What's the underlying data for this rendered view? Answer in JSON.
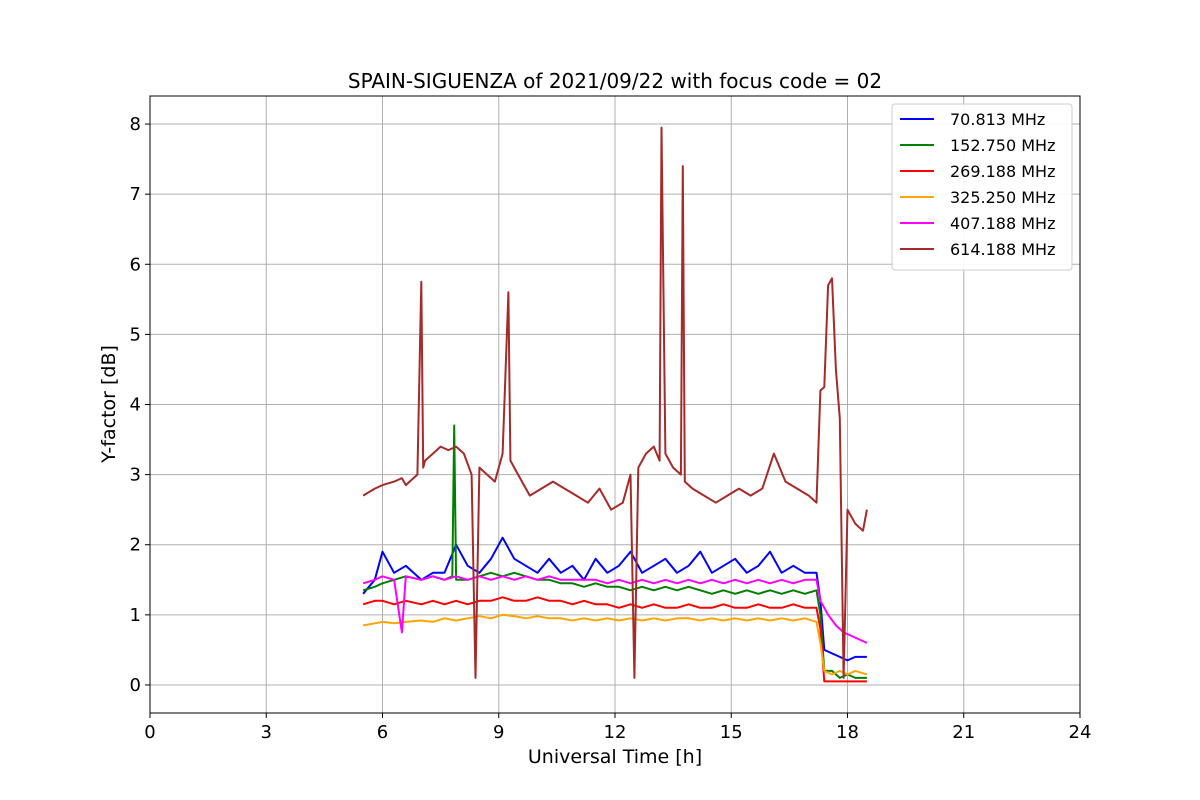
{
  "chart_data": {
    "type": "line",
    "title": "SPAIN-SIGUENZA of 2021/09/22 with focus code = 02",
    "xlabel": "Universal Time [h]",
    "ylabel": "Y-factor [dB]",
    "xlim": [
      0,
      24
    ],
    "ylim": [
      -0.4,
      8.4
    ],
    "xticks": [
      0,
      3,
      6,
      9,
      12,
      15,
      18,
      21,
      24
    ],
    "yticks": [
      0,
      1,
      2,
      3,
      4,
      5,
      6,
      7,
      8
    ],
    "grid": true,
    "legend_position": "top-right",
    "series": [
      {
        "name": "70.813 MHz",
        "color": "#0000ff",
        "x": [
          5.5,
          5.8,
          6.0,
          6.3,
          6.6,
          7.0,
          7.3,
          7.6,
          7.9,
          8.2,
          8.5,
          8.8,
          9.1,
          9.4,
          9.7,
          10.0,
          10.3,
          10.6,
          10.9,
          11.2,
          11.5,
          11.8,
          12.1,
          12.4,
          12.7,
          13.0,
          13.3,
          13.6,
          13.9,
          14.2,
          14.5,
          14.8,
          15.1,
          15.4,
          15.7,
          16.0,
          16.3,
          16.6,
          16.9,
          17.2,
          17.3,
          17.4,
          17.6,
          17.8,
          18.0,
          18.2,
          18.5
        ],
        "y": [
          1.3,
          1.5,
          1.9,
          1.6,
          1.7,
          1.5,
          1.6,
          1.6,
          2.0,
          1.7,
          1.6,
          1.8,
          2.1,
          1.8,
          1.7,
          1.6,
          1.8,
          1.6,
          1.7,
          1.5,
          1.8,
          1.6,
          1.7,
          1.9,
          1.6,
          1.7,
          1.8,
          1.6,
          1.7,
          1.9,
          1.6,
          1.7,
          1.8,
          1.6,
          1.7,
          1.9,
          1.6,
          1.7,
          1.6,
          1.6,
          1.2,
          0.5,
          0.45,
          0.4,
          0.35,
          0.4,
          0.4
        ]
      },
      {
        "name": "152.750 MHz",
        "color": "#008000",
        "x": [
          5.5,
          5.8,
          6.0,
          6.3,
          6.6,
          7.0,
          7.3,
          7.6,
          7.8,
          7.85,
          7.9,
          8.2,
          8.5,
          8.8,
          9.1,
          9.4,
          9.7,
          10.0,
          10.3,
          10.6,
          10.9,
          11.2,
          11.5,
          11.8,
          12.1,
          12.4,
          12.7,
          13.0,
          13.3,
          13.6,
          13.9,
          14.2,
          14.5,
          14.8,
          15.1,
          15.4,
          15.7,
          16.0,
          16.3,
          16.6,
          16.9,
          17.2,
          17.3,
          17.4,
          17.6,
          17.8,
          18.0,
          18.2,
          18.5
        ],
        "y": [
          1.35,
          1.4,
          1.45,
          1.5,
          1.55,
          1.5,
          1.55,
          1.5,
          1.55,
          3.7,
          1.5,
          1.5,
          1.55,
          1.6,
          1.55,
          1.6,
          1.55,
          1.5,
          1.5,
          1.45,
          1.45,
          1.4,
          1.45,
          1.4,
          1.4,
          1.35,
          1.4,
          1.35,
          1.4,
          1.35,
          1.4,
          1.35,
          1.3,
          1.35,
          1.3,
          1.35,
          1.3,
          1.35,
          1.3,
          1.35,
          1.3,
          1.35,
          1.0,
          0.2,
          0.2,
          0.1,
          0.15,
          0.1,
          0.1
        ]
      },
      {
        "name": "269.188 MHz",
        "color": "#ff0000",
        "x": [
          5.5,
          5.8,
          6.0,
          6.3,
          6.6,
          7.0,
          7.3,
          7.6,
          7.9,
          8.2,
          8.5,
          8.8,
          9.1,
          9.4,
          9.7,
          10.0,
          10.3,
          10.6,
          10.9,
          11.2,
          11.5,
          11.8,
          12.1,
          12.4,
          12.7,
          13.0,
          13.3,
          13.6,
          13.9,
          14.2,
          14.5,
          14.8,
          15.1,
          15.4,
          15.7,
          16.0,
          16.3,
          16.6,
          16.9,
          17.2,
          17.3,
          17.4,
          17.6,
          17.8,
          18.0,
          18.2,
          18.5
        ],
        "y": [
          1.15,
          1.2,
          1.2,
          1.15,
          1.2,
          1.15,
          1.2,
          1.15,
          1.2,
          1.15,
          1.2,
          1.2,
          1.25,
          1.2,
          1.2,
          1.25,
          1.2,
          1.2,
          1.15,
          1.2,
          1.15,
          1.15,
          1.1,
          1.15,
          1.1,
          1.15,
          1.1,
          1.1,
          1.15,
          1.1,
          1.1,
          1.15,
          1.1,
          1.1,
          1.15,
          1.1,
          1.1,
          1.15,
          1.1,
          1.1,
          0.8,
          0.05,
          0.05,
          0.05,
          0.05,
          0.05,
          0.05
        ]
      },
      {
        "name": "325.250 MHz",
        "color": "#ffa500",
        "x": [
          5.5,
          5.8,
          6.0,
          6.3,
          6.6,
          7.0,
          7.3,
          7.6,
          7.9,
          8.2,
          8.5,
          8.8,
          9.1,
          9.4,
          9.7,
          10.0,
          10.3,
          10.6,
          10.9,
          11.2,
          11.5,
          11.8,
          12.1,
          12.4,
          12.7,
          13.0,
          13.3,
          13.6,
          13.9,
          14.2,
          14.5,
          14.8,
          15.1,
          15.4,
          15.7,
          16.0,
          16.3,
          16.6,
          16.9,
          17.2,
          17.3,
          17.4,
          17.6,
          17.8,
          18.0,
          18.2,
          18.5
        ],
        "y": [
          0.85,
          0.88,
          0.9,
          0.88,
          0.9,
          0.92,
          0.9,
          0.95,
          0.92,
          0.95,
          0.98,
          0.95,
          1.0,
          0.98,
          0.95,
          0.98,
          0.95,
          0.95,
          0.92,
          0.95,
          0.92,
          0.95,
          0.92,
          0.95,
          0.92,
          0.95,
          0.92,
          0.95,
          0.95,
          0.92,
          0.95,
          0.92,
          0.95,
          0.92,
          0.95,
          0.92,
          0.95,
          0.92,
          0.95,
          0.9,
          0.6,
          0.2,
          0.15,
          0.2,
          0.15,
          0.2,
          0.15
        ]
      },
      {
        "name": "407.188 MHz",
        "color": "#ff00ff",
        "x": [
          5.5,
          5.8,
          6.0,
          6.3,
          6.5,
          6.6,
          7.0,
          7.3,
          7.6,
          7.9,
          8.2,
          8.5,
          8.8,
          9.1,
          9.4,
          9.7,
          10.0,
          10.3,
          10.6,
          10.9,
          11.2,
          11.5,
          11.8,
          12.1,
          12.4,
          12.7,
          13.0,
          13.3,
          13.6,
          13.9,
          14.2,
          14.5,
          14.8,
          15.1,
          15.4,
          15.7,
          16.0,
          16.3,
          16.6,
          16.9,
          17.2,
          17.3,
          17.5,
          17.7,
          17.9,
          18.1,
          18.3,
          18.5
        ],
        "y": [
          1.45,
          1.5,
          1.55,
          1.5,
          0.75,
          1.55,
          1.5,
          1.55,
          1.5,
          1.55,
          1.5,
          1.55,
          1.5,
          1.55,
          1.5,
          1.55,
          1.5,
          1.55,
          1.5,
          1.5,
          1.5,
          1.5,
          1.45,
          1.5,
          1.45,
          1.5,
          1.45,
          1.5,
          1.45,
          1.5,
          1.45,
          1.5,
          1.45,
          1.5,
          1.45,
          1.5,
          1.45,
          1.5,
          1.45,
          1.5,
          1.5,
          1.2,
          1.0,
          0.85,
          0.75,
          0.7,
          0.65,
          0.6
        ]
      },
      {
        "name": "614.188 MHz",
        "color": "#a52a2a",
        "x": [
          5.5,
          5.8,
          6.0,
          6.3,
          6.5,
          6.6,
          6.7,
          6.9,
          7.0,
          7.05,
          7.1,
          7.3,
          7.5,
          7.7,
          7.9,
          8.1,
          8.3,
          8.4,
          8.5,
          8.7,
          8.9,
          9.1,
          9.25,
          9.3,
          9.5,
          9.8,
          10.1,
          10.4,
          10.7,
          11.0,
          11.3,
          11.6,
          11.9,
          12.2,
          12.4,
          12.5,
          12.6,
          12.8,
          13.0,
          13.15,
          13.2,
          13.3,
          13.5,
          13.7,
          13.75,
          13.8,
          14.0,
          14.3,
          14.6,
          14.9,
          15.2,
          15.5,
          15.8,
          16.1,
          16.4,
          16.7,
          17.0,
          17.2,
          17.3,
          17.4,
          17.5,
          17.6,
          17.7,
          17.8,
          17.9,
          18.0,
          18.2,
          18.4,
          18.5
        ],
        "y": [
          2.7,
          2.8,
          2.85,
          2.9,
          2.95,
          2.85,
          2.9,
          3.0,
          5.75,
          3.1,
          3.2,
          3.3,
          3.4,
          3.35,
          3.4,
          3.3,
          3.0,
          0.1,
          3.1,
          3.0,
          2.9,
          3.3,
          5.6,
          3.2,
          3.0,
          2.7,
          2.8,
          2.9,
          2.8,
          2.7,
          2.6,
          2.8,
          2.5,
          2.6,
          3.0,
          0.1,
          3.1,
          3.3,
          3.4,
          3.2,
          7.95,
          3.3,
          3.1,
          3.0,
          7.4,
          2.9,
          2.8,
          2.7,
          2.6,
          2.7,
          2.8,
          2.7,
          2.8,
          3.3,
          2.9,
          2.8,
          2.7,
          2.6,
          4.2,
          4.25,
          5.7,
          5.8,
          4.5,
          3.8,
          0.1,
          2.5,
          2.3,
          2.2,
          2.5
        ]
      }
    ]
  }
}
